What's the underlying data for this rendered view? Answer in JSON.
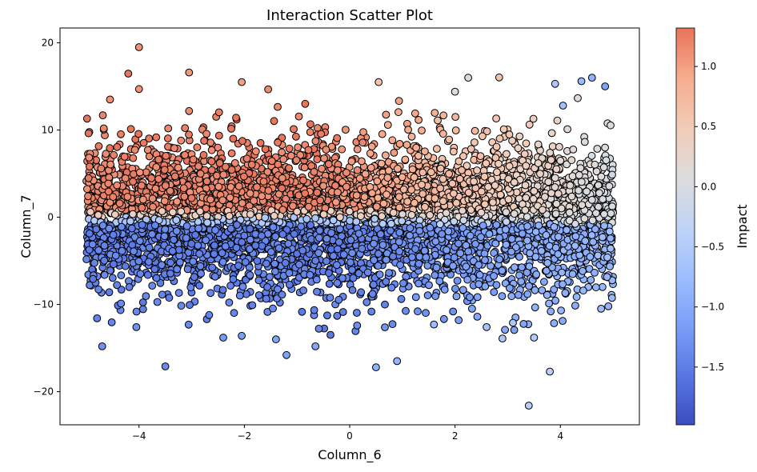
{
  "chart_data": {
    "type": "scatter",
    "title": "Interaction Scatter Plot",
    "xlabel": "Column_6",
    "ylabel": "Column_7",
    "xlim": [
      -5.5,
      5.5
    ],
    "ylim": [
      -23.8,
      21.7
    ],
    "x_ticks": [
      -4,
      -2,
      0,
      2,
      4
    ],
    "y_ticks": [
      -20,
      -10,
      0,
      10,
      20
    ],
    "grid": false,
    "legend": "none",
    "colorbar": {
      "label": "Impact",
      "colormap": "coolwarm",
      "range": [
        -1.98,
        1.32
      ],
      "ticks": [
        -1.5,
        -1.0,
        -0.5,
        0.0,
        0.5,
        1.0
      ],
      "tick_labels": [
        "−1.5",
        "−1.0",
        "−0.5",
        "0.0",
        "0.5",
        "1.0"
      ]
    },
    "marker": {
      "edgecolor": "#000000",
      "shape": "circle"
    },
    "x_tick_labels": [
      "−4",
      "−2",
      "0",
      "2",
      "4"
    ],
    "y_tick_labels": [
      "−20",
      "−10",
      "0",
      "10",
      "20"
    ],
    "sample_points": [
      {
        "x": -4.0,
        "y": 19.5,
        "impact": 1.1
      },
      {
        "x": -3.05,
        "y": 16.6,
        "impact": 1.05
      },
      {
        "x": -2.05,
        "y": 15.5,
        "impact": 1.0
      },
      {
        "x": -4.0,
        "y": 14.7,
        "impact": 1.1
      },
      {
        "x": -4.55,
        "y": 13.5,
        "impact": 1.1
      },
      {
        "x": 0.55,
        "y": 15.5,
        "impact": 0.6
      },
      {
        "x": 2.25,
        "y": 16.0,
        "impact": 0.05
      },
      {
        "x": 2.0,
        "y": 14.4,
        "impact": 0.1
      },
      {
        "x": 3.9,
        "y": 15.3,
        "impact": -0.6
      },
      {
        "x": 4.4,
        "y": 15.6,
        "impact": -0.8
      },
      {
        "x": 4.6,
        "y": 16.0,
        "impact": -0.9
      },
      {
        "x": 4.85,
        "y": 15.0,
        "impact": -1.1
      },
      {
        "x": 4.05,
        "y": 12.8,
        "impact": -0.7
      },
      {
        "x": -4.7,
        "y": -14.8,
        "impact": -1.3
      },
      {
        "x": -3.5,
        "y": -17.1,
        "impact": -1.35
      },
      {
        "x": -1.2,
        "y": -15.8,
        "impact": -1.1
      },
      {
        "x": -0.65,
        "y": -14.8,
        "impact": -1.05
      },
      {
        "x": 0.5,
        "y": -17.2,
        "impact": -0.9
      },
      {
        "x": 0.9,
        "y": -16.5,
        "impact": -0.85
      },
      {
        "x": 3.8,
        "y": -17.7,
        "impact": -0.4
      },
      {
        "x": 3.4,
        "y": -21.6,
        "impact": -0.45
      },
      {
        "x": 3.5,
        "y": -13.8,
        "impact": -0.5
      },
      {
        "x": 2.9,
        "y": -13.9,
        "impact": -0.55
      },
      {
        "x": -4.05,
        "y": -12.6,
        "impact": -1.3
      },
      {
        "x": -2.4,
        "y": -13.8,
        "impact": -1.2
      },
      {
        "x": -2.05,
        "y": -13.6,
        "impact": -1.15
      },
      {
        "x": -1.4,
        "y": -14.0,
        "impact": -1.1
      },
      {
        "x": 1.6,
        "y": -12.3,
        "impact": -0.75
      },
      {
        "x": 2.6,
        "y": -12.6,
        "impact": -0.65
      },
      {
        "x": 3.1,
        "y": -12.1,
        "impact": -0.6
      }
    ]
  }
}
